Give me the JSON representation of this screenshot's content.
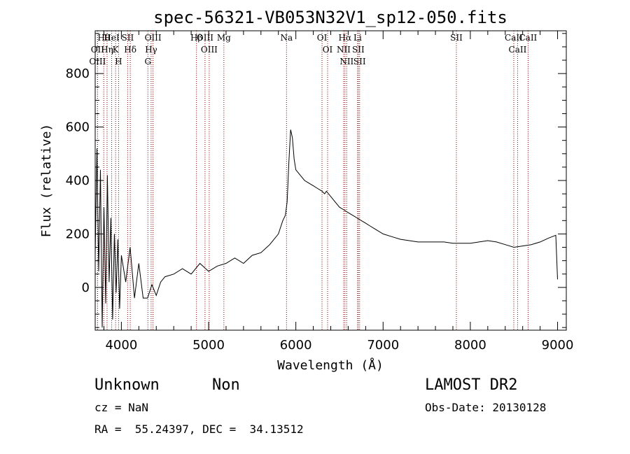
{
  "chart_data": {
    "type": "line",
    "title": "spec-56321-VB053N32V1_sp12-050.fits",
    "xlabel": "Wavelength (Å)",
    "ylabel": "Flux (relative)",
    "xlim": [
      3700,
      9100
    ],
    "ylim": [
      -160,
      960
    ],
    "x_ticks": [
      4000,
      5000,
      6000,
      7000,
      8000,
      9000
    ],
    "y_ticks": [
      0,
      200,
      400,
      600,
      800
    ],
    "x_tick_labels": [
      "4000",
      "5000",
      "6000",
      "7000",
      "8000",
      "9000"
    ],
    "y_tick_labels": [
      "0",
      "200",
      "400",
      "600",
      "800"
    ],
    "grid": false,
    "line_color": "#000000",
    "marker_line_color": "#8b0000",
    "series": [
      {
        "x": [
          3700,
          3720,
          3740,
          3760,
          3780,
          3800,
          3820,
          3840,
          3860,
          3880,
          3900,
          3920,
          3940,
          3960,
          3980,
          4000,
          4050,
          4100,
          4150,
          4200,
          4250,
          4300,
          4350,
          4400,
          4450,
          4500,
          4600,
          4700,
          4800,
          4900,
          5000,
          5100,
          5200,
          5300,
          5400,
          5500,
          5600,
          5700,
          5800,
          5850,
          5880,
          5900,
          5920,
          5940,
          5960,
          5980,
          6000,
          6050,
          6100,
          6150,
          6200,
          6250,
          6300,
          6330,
          6350,
          6400,
          6450,
          6500,
          6550,
          6600,
          6650,
          6700,
          6750,
          6800,
          6850,
          6900,
          7000,
          7100,
          7200,
          7300,
          7400,
          7500,
          7600,
          7700,
          7800,
          7900,
          8000,
          8100,
          8200,
          8300,
          8400,
          8500,
          8600,
          8700,
          8800,
          8900,
          8980,
          9000
        ],
        "y": [
          120,
          520,
          60,
          440,
          -150,
          300,
          -60,
          420,
          20,
          260,
          -120,
          200,
          -20,
          180,
          -80,
          120,
          20,
          150,
          -40,
          90,
          -40,
          -40,
          10,
          -30,
          20,
          40,
          50,
          70,
          50,
          90,
          60,
          80,
          90,
          110,
          90,
          120,
          130,
          160,
          200,
          250,
          270,
          320,
          470,
          590,
          560,
          480,
          440,
          420,
          400,
          390,
          380,
          370,
          360,
          350,
          360,
          340,
          320,
          300,
          290,
          280,
          270,
          260,
          250,
          240,
          230,
          220,
          200,
          190,
          180,
          175,
          170,
          170,
          170,
          170,
          165,
          165,
          165,
          170,
          175,
          170,
          160,
          150,
          155,
          160,
          170,
          185,
          195,
          30
        ]
      }
    ],
    "lines": [
      {
        "label": "Hθ",
        "x": 3798
      },
      {
        "label": "OII",
        "x": 3727
      },
      {
        "label": "OIII",
        "x": 3727
      },
      {
        "label": "Hη",
        "x": 3836
      },
      {
        "label": "HeI",
        "x": 3889
      },
      {
        "label": "K",
        "x": 3934
      },
      {
        "label": "H",
        "x": 3968
      },
      {
        "label": "SII",
        "x": 4072
      },
      {
        "label": "Hδ",
        "x": 4102
      },
      {
        "label": "OIII",
        "x": 4363
      },
      {
        "label": "Hγ",
        "x": 4341
      },
      {
        "label": "G",
        "x": 4304
      },
      {
        "label": "Hβ",
        "x": 4861
      },
      {
        "label": "OIII",
        "x": 4959
      },
      {
        "label": "OIII",
        "x": 5007
      },
      {
        "label": "Mg",
        "x": 5175
      },
      {
        "label": "Na",
        "x": 5893
      },
      {
        "label": "OI",
        "x": 6300
      },
      {
        "label": "OI",
        "x": 6364
      },
      {
        "label": "Hα",
        "x": 6563
      },
      {
        "label": "NII",
        "x": 6548
      },
      {
        "label": "NII",
        "x": 6583
      },
      {
        "label": "Li",
        "x": 6708
      },
      {
        "label": "SII",
        "x": 6716
      },
      {
        "label": "SII",
        "x": 6731
      },
      {
        "label": "SII",
        "x": 7840
      },
      {
        "label": "CaII",
        "x": 8498
      },
      {
        "label": "CaII",
        "x": 8542
      },
      {
        "label": "CaII",
        "x": 8662
      }
    ]
  },
  "info": {
    "class": "Unknown",
    "subclass": "Non",
    "cz": "cz = NaN",
    "coords": "RA =  55.24397, DEC =  34.13512",
    "survey": "LAMOST DR2",
    "obs_date": "Obs-Date: 20130128"
  }
}
